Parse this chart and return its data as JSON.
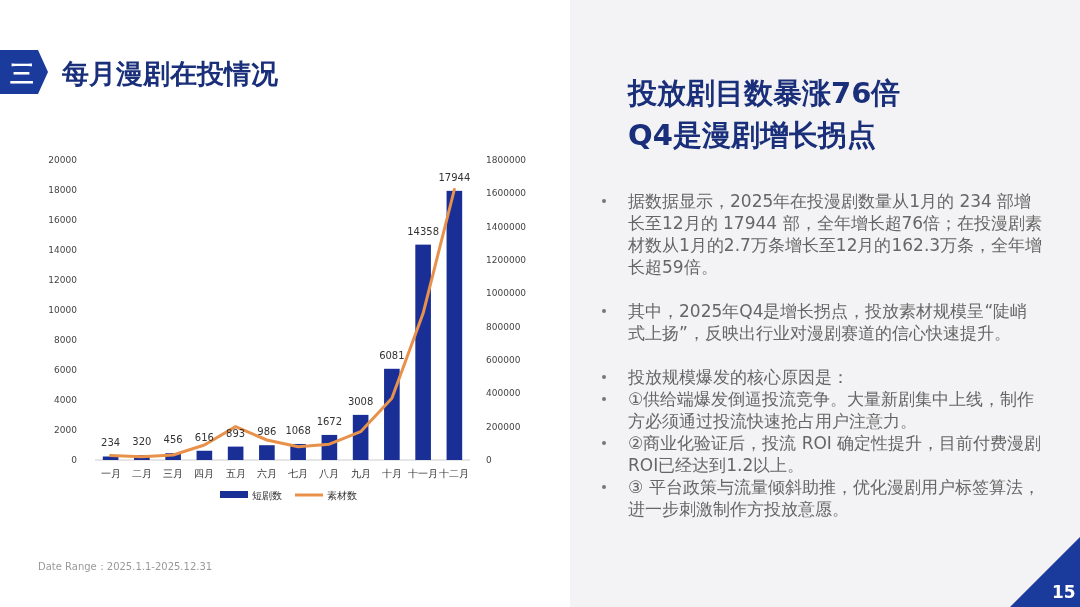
{
  "chart_data": {
    "type": "bar",
    "title": "每月漫剧在投情况",
    "categories": [
      "一月",
      "二月",
      "三月",
      "四月",
      "五月",
      "六月",
      "七月",
      "八月",
      "九月",
      "十月",
      "十一月",
      "十二月"
    ],
    "series": [
      {
        "name": "短剧数",
        "color": "#1a2f96",
        "values": [
          234,
          320,
          456,
          616,
          893,
          986,
          1068,
          1672,
          3008,
          6081,
          14358,
          17944
        ],
        "value_labels": [
          "234",
          "320",
          "456",
          "616",
          "893",
          "986",
          "1068",
          "1672",
          "3008",
          "6081",
          "14358",
          "17944"
        ]
      },
      {
        "name": "素材数",
        "type": "line",
        "axis": "y2",
        "color": "#e8914a",
        "values": [
          27000,
          20000,
          30000,
          90000,
          200000,
          120000,
          80000,
          95000,
          170000,
          370000,
          880000,
          1623000
        ]
      }
    ],
    "ylim": [
      0,
      20000
    ],
    "yticks": [
      0,
      2000,
      4000,
      6000,
      8000,
      10000,
      12000,
      14000,
      16000,
      18000,
      20000
    ],
    "y2lim": [
      0,
      1800000
    ],
    "y2ticks": [
      0,
      200000,
      400000,
      600000,
      800000,
      1000000,
      1200000,
      1400000,
      1600000,
      1800000
    ],
    "grid": false,
    "legend": "bottom",
    "marker": "none",
    "line_style": "solid",
    "annotations": [
      "三",
      "投放剧目数暴涨76倍\nQ4是漫剧增长拐点",
      "据数据显示，2025年在投漫剧数量从1月的 234 部增长至12月的 17944 部，全年增长超76倍；在投漫剧素材数从1月的2.7万条增长至12月的162.3万条，全年增长超59倍。",
      "其中，2025年Q4是增长拐点，投放素材规模呈“陡峭式上扬”，反映出行业对漫剧赛道的信心快速提升。",
      "投放规模爆发的核心原因是：",
      "①供给端爆发倒逼投流竞争。大量新剧集中上线，制作方必须通过投流快速抢占用户注意力。",
      "②商业化验证后，投流 ROI 确定性提升，目前付费漫剧ROI已经达到1.2以上。",
      "③ 平台政策与流量倾斜助推，优化漫剧用户标签算法，进一步刺激制作方投放意愿。",
      "Date Range：2025.1.1-2025.12.31",
      "15"
    ]
  }
}
